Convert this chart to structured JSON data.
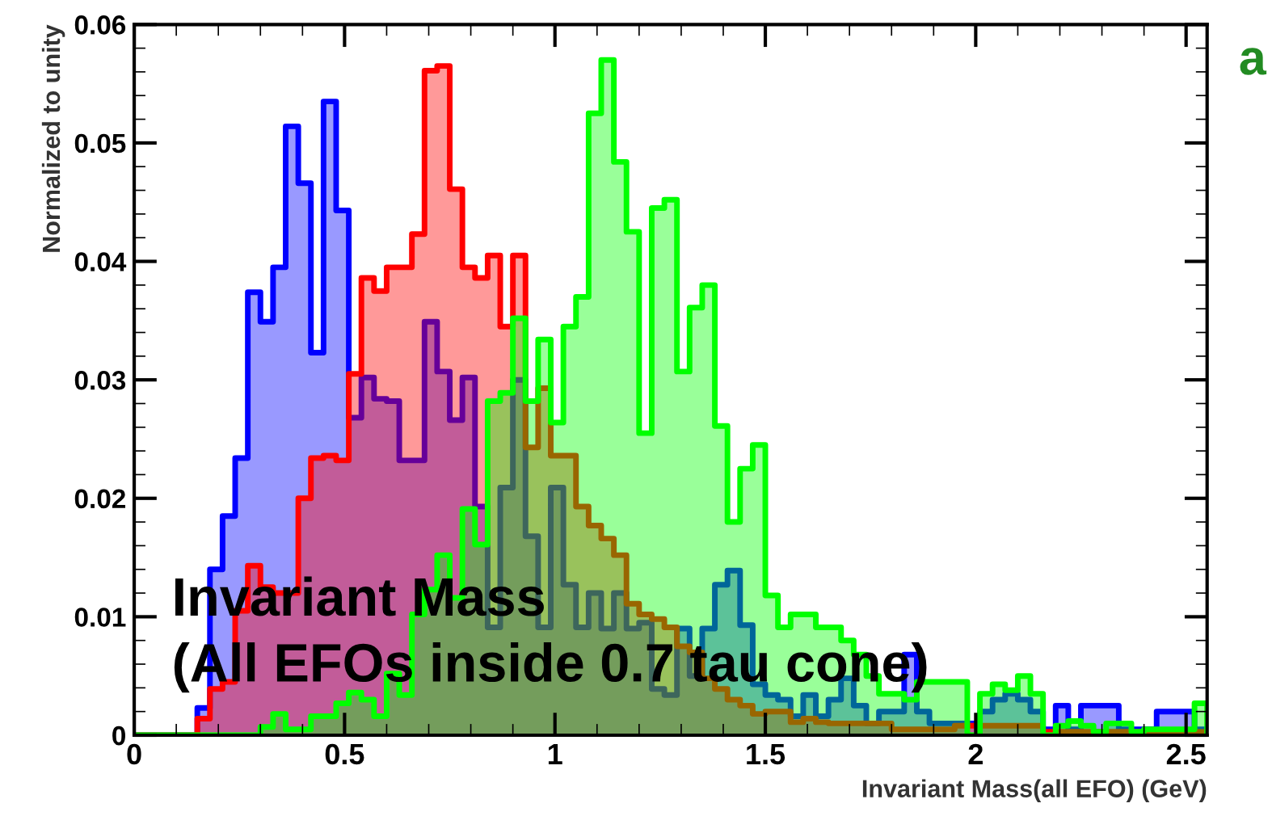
{
  "chart_data": {
    "type": "histogram",
    "xlabel": "Invariant Mass(all EFO) (GeV)",
    "ylabel": "Normalized to unity",
    "annotations": [
      "Invariant Mass\n(All EFOs inside 0.7 tau cone)",
      "a"
    ],
    "bins": [
      0,
      0.03,
      0.06,
      0.09,
      0.12,
      0.15,
      0.18,
      0.21,
      0.24,
      0.27,
      0.3,
      0.33,
      0.36,
      0.39,
      0.42,
      0.45,
      0.48,
      0.51,
      0.54,
      0.57,
      0.6,
      0.63,
      0.66,
      0.69,
      0.72,
      0.75,
      0.78,
      0.81,
      0.84,
      0.87,
      0.9,
      0.93,
      0.96,
      0.99,
      1.02,
      1.05,
      1.08,
      1.11,
      1.14,
      1.17,
      1.2,
      1.23,
      1.26,
      1.29,
      1.32,
      1.35,
      1.38,
      1.41,
      1.44,
      1.47,
      1.5,
      1.53,
      1.56,
      1.59,
      1.62,
      1.65,
      1.68,
      1.71,
      1.74,
      1.77,
      1.8,
      1.83,
      1.86,
      1.89,
      1.92,
      1.95,
      1.98,
      2.01,
      2.04,
      2.07,
      2.1,
      2.13,
      2.16,
      2.19,
      2.22,
      2.25,
      2.28,
      2.31,
      2.34,
      2.37,
      2.4,
      2.43,
      2.46,
      2.49,
      2.52,
      2.55
    ],
    "series": [
      {
        "color": "#0000ff",
        "values": [
          0,
          0,
          0,
          0,
          0,
          0.0023,
          0.014,
          0.0185,
          0.0234,
          0.0374,
          0.0349,
          0.0395,
          0.0514,
          0.0466,
          0.0323,
          0.0535,
          0.0443,
          0.0268,
          0.0302,
          0.0284,
          0.0282,
          0.0232,
          0.0232,
          0.0349,
          0.0307,
          0.0266,
          0.0302,
          0.0193,
          0.0091,
          0.0209,
          0.03,
          0.0168,
          0.0091,
          0.0209,
          0.0127,
          0.0091,
          0.012,
          0.009,
          0.012,
          0.009,
          0.0095,
          0.0039,
          0.0034,
          0.009,
          0.005,
          0.009,
          0.0127,
          0.0139,
          0.0093,
          0.0043,
          0.0034,
          0.003,
          0.0016,
          0.0034,
          0.0016,
          0.003,
          0.0048,
          0.0025,
          0.001,
          0.002,
          0.002,
          0.0068,
          0.002,
          0.001,
          0.001,
          0.001,
          0.001,
          0.002,
          0.003,
          0.0035,
          0.003,
          0.002,
          0.0005,
          0.0025,
          0.0005,
          0.0025,
          0.0025,
          0.0025,
          0.0005,
          0.0005,
          0.0005,
          0.002,
          0.002,
          0.002,
          0.0005
        ]
      },
      {
        "color": "#ff0000",
        "values": [
          0,
          0,
          0,
          0,
          0,
          0.0014,
          0.0039,
          0.0045,
          0.0105,
          0.0143,
          0.0125,
          0.012,
          0.012,
          0.02,
          0.0234,
          0.0236,
          0.0232,
          0.0305,
          0.0386,
          0.0375,
          0.0395,
          0.0395,
          0.0423,
          0.0561,
          0.0565,
          0.0461,
          0.0395,
          0.0386,
          0.0405,
          0.0345,
          0.0405,
          0.0243,
          0.0293,
          0.0236,
          0.0236,
          0.0193,
          0.0177,
          0.0166,
          0.0152,
          0.0111,
          0.0102,
          0.0098,
          0.0091,
          0.0075,
          0.007,
          0.0048,
          0.0039,
          0.003,
          0.0025,
          0.0018,
          0.002,
          0.002,
          0.0011,
          0.0014,
          0.0011,
          0.001,
          0.001,
          0.001,
          0.001,
          0.001,
          0.0005,
          0.0005,
          0.0005,
          0.0005,
          0.0005,
          0.0008,
          0.0008,
          0.0008,
          0.0008,
          0.0008,
          0.0008,
          0.0008,
          0.0003,
          0.0003,
          0.0003,
          0.0003,
          0.0003,
          0.0003,
          0.0003,
          0.0003,
          0.0003,
          0.0003,
          0.0003,
          0.0003,
          0.0003
        ]
      },
      {
        "color": "#00ff00",
        "values": [
          0,
          0,
          0,
          0,
          0,
          0,
          0,
          0,
          0,
          0,
          0.0007,
          0.0018,
          0.0005,
          0.0005,
          0.0016,
          0.0016,
          0.0027,
          0.0036,
          0.003,
          0.0016,
          0.0052,
          0.0034,
          0.0102,
          0.0123,
          0.0152,
          0.0116,
          0.0191,
          0.0161,
          0.0282,
          0.0289,
          0.0352,
          0.0282,
          0.0334,
          0.0264,
          0.0345,
          0.037,
          0.0525,
          0.057,
          0.0484,
          0.0425,
          0.0255,
          0.0445,
          0.0452,
          0.0307,
          0.0361,
          0.038,
          0.0261,
          0.018,
          0.0225,
          0.0245,
          0.0118,
          0.0091,
          0.0102,
          0.0102,
          0.0091,
          0.0091,
          0.008,
          0.0068,
          0.005,
          0.0035,
          0.0035,
          0.003,
          0.0045,
          0.0045,
          0.0045,
          0.0045,
          0,
          0.0035,
          0.0043,
          0.0038,
          0.005,
          0.0035,
          0,
          0.0008,
          0.0012,
          0.0008,
          0.0003,
          0.001,
          0.001,
          0.0003,
          0.0005,
          0.0005,
          0.0005,
          0.0005,
          0.0027
        ]
      }
    ],
    "xlim": [
      0,
      2.55
    ],
    "xticks": [
      0,
      0.5,
      1,
      1.5,
      2,
      2.5
    ],
    "ylim": [
      0,
      0.06
    ],
    "yticks": [
      0,
      0.01,
      0.02,
      0.03,
      0.04,
      0.05,
      0.06
    ]
  }
}
